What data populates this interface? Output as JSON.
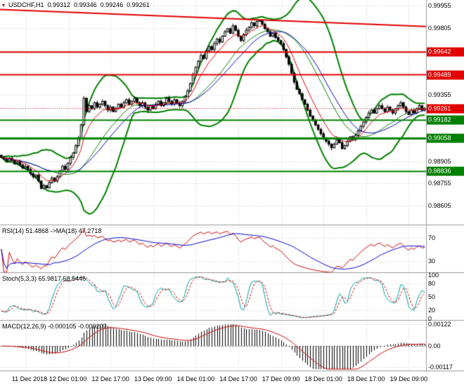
{
  "chart_data": {
    "type": "candlestick",
    "symbol": "USDCHF",
    "timeframe": "H1",
    "header": {
      "symbol_label": "USDCHF,H1",
      "open": "0.99312",
      "high": "0.99346",
      "low": "0.99246",
      "close": "0.99261"
    },
    "price_axis": {
      "ylim": [
        0.9847,
        0.99985
      ],
      "visible_ticks": [
        {
          "label": "0.99955",
          "value": 0.99955
        },
        {
          "label": "0.99805",
          "value": 0.99805
        },
        {
          "label": "0.99355",
          "value": 0.99355
        },
        {
          "label": "0.98905",
          "value": 0.98905
        },
        {
          "label": "0.98755",
          "value": 0.98755
        },
        {
          "label": "0.98605",
          "value": 0.98605
        }
      ],
      "grid_values": [
        0.99955,
        0.99805,
        0.99655,
        0.99505,
        0.99355,
        0.99205,
        0.99055,
        0.98905,
        0.98755,
        0.98605,
        0.98455
      ],
      "current": {
        "label": "0.99261",
        "value": 0.99261
      }
    },
    "levels": {
      "resistance": [
        {
          "label": "0.99642",
          "value": 0.99642,
          "width": 2
        },
        {
          "label": "0.99489",
          "value": 0.99489,
          "width": 2
        }
      ],
      "support": [
        {
          "label": "0.99182",
          "value": 0.99182,
          "width": 2
        },
        {
          "label": "0.99058",
          "value": 0.99058,
          "width": 3
        },
        {
          "label": "0.98836",
          "value": 0.98836,
          "width": 2
        }
      ],
      "trendline": {
        "price_start": 0.9993,
        "price_end": 0.99815
      }
    },
    "time_axis": {
      "labels": [
        "11 Dec 2018",
        "12 Dec 01:00",
        "12 Dec 17:00",
        "13 Dec 09:00",
        "14 Dec 01:00",
        "14 Dec 17:00",
        "17 Dec 09:00",
        "18 Dec 01:00",
        "18 Dec 17:00",
        "19 Dec 09:00"
      ],
      "bar_index": [
        9,
        25,
        41,
        57,
        73,
        89,
        105,
        121,
        137,
        153
      ]
    },
    "closes": [
      98930,
      98920,
      98905,
      98925,
      98910,
      98890,
      98900,
      98880,
      98860,
      98870,
      98850,
      98820,
      98800,
      98810,
      98770,
      98720,
      98740,
      98725,
      98760,
      98790,
      98770,
      98800,
      98840,
      98870,
      98850,
      98890,
      98930,
      98960,
      99010,
      99060,
      99150,
      99330,
      99240,
      99280,
      99260,
      99300,
      99270,
      99290,
      99310,
      99280,
      99250,
      99270,
      99240,
      99260,
      99290,
      99270,
      99300,
      99320,
      99290,
      99310,
      99330,
      99300,
      99280,
      99300,
      99270,
      99250,
      99280,
      99260,
      99290,
      99310,
      99280,
      99300,
      99330,
      99310,
      99290,
      99320,
      99300,
      99280,
      99310,
      99340,
      99380,
      99430,
      99490,
      99540,
      99580,
      99620,
      99600,
      99650,
      99680,
      99660,
      99700,
      99730,
      99710,
      99750,
      99780,
      99800,
      99770,
      99820,
      99790,
      99750,
      99720,
      99760,
      99790,
      99810,
      99840,
      99820,
      99850,
      99855,
      99830,
      99800,
      99780,
      99750,
      99770,
      99740,
      99720,
      99700,
      99660,
      99610,
      99560,
      99500,
      99440,
      99390,
      99360,
      99320,
      99290,
      99250,
      99210,
      99180,
      99150,
      99120,
      99090,
      99060,
      99040,
      99020,
      98995,
      99020,
      99050,
      99030,
      98990,
      99010,
      99040,
      99070,
      99050,
      99080,
      99110,
      99140,
      99170,
      99200,
      99230,
      99250,
      99230,
      99260,
      99280,
      99260,
      99240,
      99270,
      99250,
      99230,
      99260,
      99280,
      99300,
      99270,
      99240,
      99220,
      99250,
      99230,
      99260,
      99280,
      99250,
      99261
    ],
    "close_scale": 1e-05,
    "indicators": {
      "rsi": {
        "label": "RSI(14) 51.4868 ->MA(18) 47.2718",
        "period": 14,
        "ma_period": 18,
        "value": 51.4868,
        "ma_value": 47.2718,
        "levels": [
          {
            "label": "70",
            "value": 70
          },
          {
            "label": "30",
            "value": 30
          }
        ]
      },
      "stoch": {
        "label": "Stoch(5,3,3) 65.9817 58.5446",
        "k_value": 65.9817,
        "d_value": 58.5446,
        "levels": [
          {
            "label": "100",
            "value": 100
          },
          {
            "label": "80",
            "value": 80
          },
          {
            "label": "50",
            "value": 50
          },
          {
            "label": "20",
            "value": 20
          },
          {
            "label": "0",
            "value": 0
          }
        ]
      },
      "macd": {
        "label": "MACD(12,26,9) -0.000105 -0.000207",
        "value": -0.000105,
        "signal": -0.000207,
        "levels": [
          {
            "label": "0.00122",
            "value": 0.00122
          },
          {
            "label": "0.00",
            "value": 0
          },
          {
            "label": "-0.00117",
            "value": -0.00117
          }
        ]
      }
    },
    "colors": {
      "up_candle": "#ffffff",
      "down_candle": "#000000",
      "candle_border": "#000000",
      "ma_fast": "#dd0000",
      "ma_slow": "#0000bb",
      "bands": "#008000",
      "resistance": "#e00000",
      "support": "#008000",
      "grid": "#cfcfcf",
      "separator": "#9a9a9a",
      "tag_red_bg": "#e00000",
      "tag_green_bg": "#008000",
      "tag_text": "#ffffff",
      "rsi_line": "#cc0000",
      "rsi_ma": "#0000cc",
      "stoch_main": "#00a0a0",
      "stoch_signal": "#e00000",
      "macd_hist": "#000000",
      "macd_signal": "#cc0000"
    }
  }
}
